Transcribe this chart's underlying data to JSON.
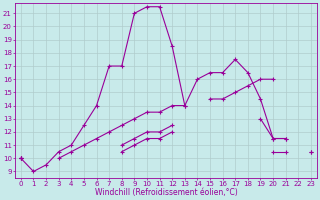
{
  "title": "",
  "xlabel": "Windchill (Refroidissement éolien,°C)",
  "bg_color": "#c8eaea",
  "line_color": "#990099",
  "grid_color": "#b0cccc",
  "x_ticks": [
    0,
    1,
    2,
    3,
    4,
    5,
    6,
    7,
    8,
    9,
    10,
    11,
    12,
    13,
    14,
    15,
    16,
    17,
    18,
    19,
    20,
    21,
    22,
    23
  ],
  "y_ticks": [
    9,
    10,
    11,
    12,
    13,
    14,
    15,
    16,
    17,
    18,
    19,
    20,
    21
  ],
  "ylim": [
    8.5,
    21.8
  ],
  "xlim": [
    -0.5,
    23.5
  ],
  "series": [
    [
      10.0,
      9.0,
      9.5,
      10.5,
      11.0,
      12.5,
      14.0,
      17.0,
      17.0,
      21.0,
      21.5,
      21.5,
      18.5,
      14.0,
      16.0,
      16.5,
      16.5,
      17.5,
      16.5,
      14.5,
      11.5,
      11.5,
      null,
      null
    ],
    [
      10.0,
      null,
      null,
      10.0,
      10.5,
      11.0,
      11.5,
      12.0,
      12.5,
      13.0,
      13.5,
      13.5,
      14.0,
      14.0,
      null,
      14.5,
      14.5,
      15.0,
      15.5,
      16.0,
      16.0,
      null,
      null,
      null
    ],
    [
      10.0,
      null,
      null,
      null,
      null,
      null,
      null,
      null,
      11.0,
      11.5,
      12.0,
      12.0,
      12.5,
      null,
      null,
      null,
      null,
      null,
      null,
      13.0,
      11.5,
      11.5,
      null,
      10.5
    ],
    [
      10.0,
      null,
      null,
      null,
      null,
      null,
      null,
      null,
      10.5,
      11.0,
      11.5,
      11.5,
      12.0,
      null,
      null,
      null,
      null,
      null,
      null,
      null,
      10.5,
      10.5,
      null,
      10.5
    ]
  ],
  "tick_fontsize": 5,
  "xlabel_fontsize": 5.5,
  "marker_size": 3,
  "linewidth": 0.8
}
